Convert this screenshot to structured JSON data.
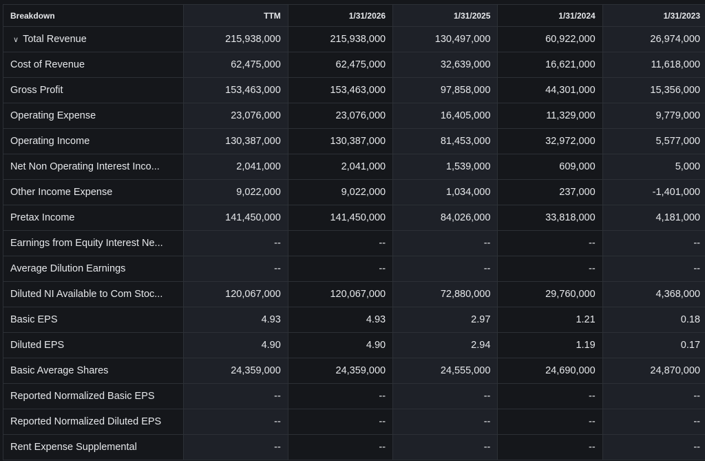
{
  "header": {
    "breakdown": "Breakdown",
    "columns": [
      "TTM",
      "1/31/2026",
      "1/31/2025",
      "1/31/2024",
      "1/31/2023"
    ]
  },
  "rows": [
    {
      "label": "Total Revenue",
      "expandable": true,
      "values": [
        "215,938,000",
        "215,938,000",
        "130,497,000",
        "60,922,000",
        "26,974,000"
      ]
    },
    {
      "label": "Cost of Revenue",
      "values": [
        "62,475,000",
        "62,475,000",
        "32,639,000",
        "16,621,000",
        "11,618,000"
      ]
    },
    {
      "label": "Gross Profit",
      "values": [
        "153,463,000",
        "153,463,000",
        "97,858,000",
        "44,301,000",
        "15,356,000"
      ]
    },
    {
      "label": "Operating Expense",
      "values": [
        "23,076,000",
        "23,076,000",
        "16,405,000",
        "11,329,000",
        "9,779,000"
      ]
    },
    {
      "label": "Operating Income",
      "values": [
        "130,387,000",
        "130,387,000",
        "81,453,000",
        "32,972,000",
        "5,577,000"
      ]
    },
    {
      "label": "Net Non Operating Interest Inco...",
      "values": [
        "2,041,000",
        "2,041,000",
        "1,539,000",
        "609,000",
        "5,000"
      ]
    },
    {
      "label": "Other Income Expense",
      "values": [
        "9,022,000",
        "9,022,000",
        "1,034,000",
        "237,000",
        "-1,401,000"
      ]
    },
    {
      "label": "Pretax Income",
      "values": [
        "141,450,000",
        "141,450,000",
        "84,026,000",
        "33,818,000",
        "4,181,000"
      ]
    },
    {
      "label": "Earnings from Equity Interest Ne...",
      "values": [
        "--",
        "--",
        "--",
        "--",
        "--"
      ]
    },
    {
      "label": "Average Dilution Earnings",
      "values": [
        "--",
        "--",
        "--",
        "--",
        "--"
      ]
    },
    {
      "label": "Diluted NI Available to Com Stoc...",
      "values": [
        "120,067,000",
        "120,067,000",
        "72,880,000",
        "29,760,000",
        "4,368,000"
      ]
    },
    {
      "label": "Basic EPS",
      "values": [
        "4.93",
        "4.93",
        "2.97",
        "1.21",
        "0.18"
      ]
    },
    {
      "label": "Diluted EPS",
      "values": [
        "4.90",
        "4.90",
        "2.94",
        "1.19",
        "0.17"
      ]
    },
    {
      "label": "Basic Average Shares",
      "values": [
        "24,359,000",
        "24,359,000",
        "24,555,000",
        "24,690,000",
        "24,870,000"
      ]
    },
    {
      "label": "Reported Normalized Basic EPS",
      "values": [
        "--",
        "--",
        "--",
        "--",
        "--"
      ]
    },
    {
      "label": "Reported Normalized Diluted EPS",
      "values": [
        "--",
        "--",
        "--",
        "--",
        "--"
      ]
    },
    {
      "label": "Rent Expense Supplemental",
      "values": [
        "--",
        "--",
        "--",
        "--",
        "--"
      ]
    }
  ]
}
